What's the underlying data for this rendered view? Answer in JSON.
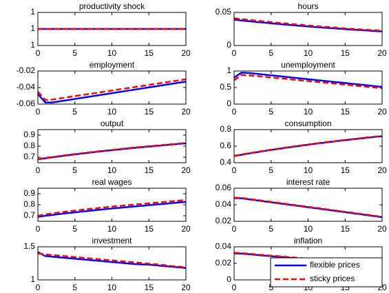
{
  "chart_data": [
    {
      "type": "line",
      "title": "productivity shock",
      "x": [
        0,
        1,
        2,
        3,
        4,
        5,
        6,
        7,
        8,
        9,
        10,
        11,
        12,
        13,
        14,
        15,
        16,
        17,
        18,
        19,
        20
      ],
      "xlim": [
        0,
        20
      ],
      "xticks": [
        0,
        5,
        10,
        15,
        20
      ],
      "ylim": [
        0.99,
        1.01
      ],
      "yticks": [
        {
          "value": 0.99,
          "label": "1"
        },
        1,
        {
          "value": 1.01,
          "label": "1"
        }
      ],
      "series": [
        {
          "color": "#0000ff",
          "values": [
            1,
            1,
            1,
            1,
            1,
            1,
            1,
            1,
            1,
            1,
            1,
            1,
            1,
            1,
            1,
            1,
            1,
            1,
            1,
            1,
            1
          ]
        },
        {
          "color": "#ff0000",
          "dash": true,
          "values": [
            1,
            1,
            1,
            1,
            1,
            1,
            1,
            1,
            1,
            1,
            1,
            1,
            1,
            1,
            1,
            1,
            1,
            1,
            1,
            1,
            1
          ]
        }
      ]
    },
    {
      "type": "line",
      "title": "hours",
      "x": [
        0,
        1,
        2,
        3,
        4,
        5,
        6,
        7,
        8,
        9,
        10,
        11,
        12,
        13,
        14,
        15,
        16,
        17,
        18,
        19,
        20
      ],
      "xlim": [
        0,
        20
      ],
      "xticks": [
        0,
        5,
        10,
        15,
        20
      ],
      "ylim": [
        0,
        0.05
      ],
      "yticks": [
        0,
        0.05
      ],
      "series": [
        {
          "color": "#0000ff",
          "values": [
            0.039,
            0.0378,
            0.0367,
            0.0356,
            0.0346,
            0.0335,
            0.0325,
            0.0315,
            0.0306,
            0.0297,
            0.0288,
            0.0279,
            0.0271,
            0.0263,
            0.0255,
            0.0247,
            0.024,
            0.0233,
            0.0226,
            0.0219,
            0.0212
          ]
        },
        {
          "color": "#ff0000",
          "dash": true,
          "values": [
            0.041,
            0.0398,
            0.0386,
            0.0375,
            0.0364,
            0.0353,
            0.0342,
            0.0332,
            0.0322,
            0.0312,
            0.0302,
            0.0293,
            0.0284,
            0.0276,
            0.0267,
            0.0259,
            0.0251,
            0.0244,
            0.0237,
            0.023,
            0.0222
          ]
        }
      ]
    },
    {
      "type": "line",
      "title": "employment",
      "x": [
        0,
        1,
        2,
        3,
        4,
        5,
        6,
        7,
        8,
        9,
        10,
        11,
        12,
        13,
        14,
        15,
        16,
        17,
        18,
        19,
        20
      ],
      "xlim": [
        0,
        20
      ],
      "xticks": [
        0,
        5,
        10,
        15,
        20
      ],
      "ylim": [
        -0.06,
        -0.02
      ],
      "yticks": [
        -0.06,
        -0.04,
        -0.02
      ],
      "series": [
        {
          "color": "#0000ff",
          "values": [
            -0.048,
            -0.058,
            -0.058,
            -0.0566,
            -0.0552,
            -0.0538,
            -0.0524,
            -0.051,
            -0.0496,
            -0.0482,
            -0.0468,
            -0.0454,
            -0.044,
            -0.0426,
            -0.0412,
            -0.0398,
            -0.0384,
            -0.037,
            -0.0356,
            -0.0342,
            -0.033
          ]
        },
        {
          "color": "#ff0000",
          "dash": true,
          "values": [
            -0.045,
            -0.055,
            -0.0545,
            -0.0531,
            -0.0518,
            -0.0504,
            -0.049,
            -0.0477,
            -0.0463,
            -0.045,
            -0.0436,
            -0.0422,
            -0.0409,
            -0.0395,
            -0.0382,
            -0.0368,
            -0.0354,
            -0.0341,
            -0.0327,
            -0.0314,
            -0.03
          ]
        }
      ]
    },
    {
      "type": "line",
      "title": "unemployment",
      "x": [
        0,
        1,
        2,
        3,
        4,
        5,
        6,
        7,
        8,
        9,
        10,
        11,
        12,
        13,
        14,
        15,
        16,
        17,
        18,
        19,
        20
      ],
      "xlim": [
        0,
        20
      ],
      "xticks": [
        0,
        5,
        10,
        15,
        20
      ],
      "ylim": [
        0,
        1
      ],
      "yticks": [
        0,
        0.5,
        1
      ],
      "series": [
        {
          "color": "#0000ff",
          "values": [
            0.8,
            0.95,
            0.94,
            0.917,
            0.893,
            0.87,
            0.847,
            0.823,
            0.8,
            0.777,
            0.753,
            0.73,
            0.707,
            0.683,
            0.66,
            0.637,
            0.613,
            0.59,
            0.567,
            0.543,
            0.52
          ]
        },
        {
          "color": "#ff0000",
          "dash": true,
          "values": [
            0.72,
            0.88,
            0.87,
            0.848,
            0.827,
            0.805,
            0.783,
            0.762,
            0.74,
            0.718,
            0.697,
            0.675,
            0.653,
            0.632,
            0.61,
            0.588,
            0.567,
            0.545,
            0.523,
            0.502,
            0.48
          ]
        }
      ]
    },
    {
      "type": "line",
      "title": "output",
      "x": [
        0,
        1,
        2,
        3,
        4,
        5,
        6,
        7,
        8,
        9,
        10,
        11,
        12,
        13,
        14,
        15,
        16,
        17,
        18,
        19,
        20
      ],
      "xlim": [
        0,
        20
      ],
      "xticks": [
        0,
        5,
        10,
        15,
        20
      ],
      "ylim": [
        0.65,
        0.95
      ],
      "yticks": [
        0.7,
        0.8,
        0.9
      ],
      "series": [
        {
          "color": "#0000ff",
          "values": [
            0.68,
            0.69,
            0.699,
            0.708,
            0.717,
            0.725,
            0.733,
            0.741,
            0.749,
            0.756,
            0.763,
            0.77,
            0.777,
            0.784,
            0.79,
            0.796,
            0.802,
            0.808,
            0.814,
            0.82,
            0.826
          ]
        },
        {
          "color": "#ff0000",
          "dash": true,
          "values": [
            0.683,
            0.693,
            0.702,
            0.711,
            0.72,
            0.728,
            0.736,
            0.744,
            0.752,
            0.759,
            0.766,
            0.773,
            0.78,
            0.787,
            0.793,
            0.799,
            0.805,
            0.811,
            0.817,
            0.823,
            0.829
          ]
        }
      ]
    },
    {
      "type": "line",
      "title": "consumption",
      "x": [
        0,
        1,
        2,
        3,
        4,
        5,
        6,
        7,
        8,
        9,
        10,
        11,
        12,
        13,
        14,
        15,
        16,
        17,
        18,
        19,
        20
      ],
      "xlim": [
        0,
        20
      ],
      "xticks": [
        0,
        5,
        10,
        15,
        20
      ],
      "ylim": [
        0.4,
        0.8
      ],
      "yticks": [
        0.4,
        0.6,
        0.8
      ],
      "series": [
        {
          "color": "#0000ff",
          "values": [
            0.48,
            0.496,
            0.511,
            0.526,
            0.54,
            0.554,
            0.567,
            0.58,
            0.593,
            0.605,
            0.617,
            0.629,
            0.64,
            0.651,
            0.662,
            0.672,
            0.682,
            0.692,
            0.702,
            0.711,
            0.72
          ]
        },
        {
          "color": "#ff0000",
          "dash": true,
          "values": [
            0.483,
            0.499,
            0.514,
            0.529,
            0.543,
            0.557,
            0.57,
            0.583,
            0.596,
            0.608,
            0.62,
            0.632,
            0.643,
            0.654,
            0.665,
            0.675,
            0.685,
            0.695,
            0.705,
            0.714,
            0.723
          ]
        }
      ]
    },
    {
      "type": "line",
      "title": "real wages",
      "x": [
        0,
        1,
        2,
        3,
        4,
        5,
        6,
        7,
        8,
        9,
        10,
        11,
        12,
        13,
        14,
        15,
        16,
        17,
        18,
        19,
        20
      ],
      "xlim": [
        0,
        20
      ],
      "xticks": [
        0,
        5,
        10,
        15,
        20
      ],
      "ylim": [
        0.65,
        0.95
      ],
      "yticks": [
        0.7,
        0.8,
        0.9
      ],
      "series": [
        {
          "color": "#0000ff",
          "values": [
            0.69,
            0.7,
            0.708,
            0.716,
            0.724,
            0.731,
            0.738,
            0.745,
            0.752,
            0.759,
            0.766,
            0.772,
            0.778,
            0.784,
            0.79,
            0.796,
            0.802,
            0.808,
            0.814,
            0.82,
            0.826
          ]
        },
        {
          "color": "#ff0000",
          "dash": true,
          "values": [
            0.7,
            0.713,
            0.722,
            0.731,
            0.739,
            0.747,
            0.755,
            0.762,
            0.769,
            0.776,
            0.783,
            0.789,
            0.795,
            0.801,
            0.807,
            0.813,
            0.819,
            0.825,
            0.831,
            0.837,
            0.843
          ]
        }
      ]
    },
    {
      "type": "line",
      "title": "interest rate",
      "x": [
        0,
        1,
        2,
        3,
        4,
        5,
        6,
        7,
        8,
        9,
        10,
        11,
        12,
        13,
        14,
        15,
        16,
        17,
        18,
        19,
        20
      ],
      "xlim": [
        0,
        20
      ],
      "xticks": [
        0,
        5,
        10,
        15,
        20
      ],
      "ylim": [
        0.02,
        0.06
      ],
      "yticks": [
        0.02,
        0.04,
        0.06
      ],
      "series": [
        {
          "color": "#0000ff",
          "values": [
            0.048,
            0.0478,
            0.0466,
            0.0454,
            0.0442,
            0.043,
            0.0418,
            0.0406,
            0.0394,
            0.0382,
            0.037,
            0.0358,
            0.0346,
            0.0334,
            0.0322,
            0.031,
            0.0298,
            0.0286,
            0.0274,
            0.0262,
            0.025
          ]
        },
        {
          "color": "#ff0000",
          "dash": true,
          "values": [
            0.0485,
            0.0483,
            0.0471,
            0.0459,
            0.0447,
            0.0435,
            0.0423,
            0.0411,
            0.0399,
            0.0387,
            0.0375,
            0.0363,
            0.0351,
            0.0339,
            0.0327,
            0.0315,
            0.0303,
            0.0291,
            0.0279,
            0.0267,
            0.0253
          ]
        }
      ]
    },
    {
      "type": "line",
      "title": "investment",
      "x": [
        0,
        1,
        2,
        3,
        4,
        5,
        6,
        7,
        8,
        9,
        10,
        11,
        12,
        13,
        14,
        15,
        16,
        17,
        18,
        19,
        20
      ],
      "xlim": [
        0,
        20
      ],
      "xticks": [
        0,
        5,
        10,
        15,
        20
      ],
      "ylim": [
        1,
        1.5
      ],
      "yticks": [
        1,
        1.5
      ],
      "series": [
        {
          "color": "#0000ff",
          "values": [
            1.42,
            1.36,
            1.35,
            1.34,
            1.33,
            1.32,
            1.31,
            1.3,
            1.29,
            1.28,
            1.27,
            1.26,
            1.25,
            1.24,
            1.235,
            1.23,
            1.22,
            1.21,
            1.2,
            1.19,
            1.18
          ]
        },
        {
          "color": "#ff0000",
          "dash": true,
          "values": [
            1.4,
            1.385,
            1.375,
            1.365,
            1.355,
            1.345,
            1.335,
            1.325,
            1.315,
            1.305,
            1.295,
            1.285,
            1.275,
            1.265,
            1.255,
            1.245,
            1.235,
            1.225,
            1.21,
            1.2,
            1.19
          ]
        }
      ]
    },
    {
      "type": "line",
      "title": "inflation",
      "x": [
        0,
        1,
        2,
        3,
        4,
        5,
        6,
        7,
        8,
        9,
        10,
        11,
        12,
        13,
        14,
        15,
        16,
        17,
        18,
        19,
        20
      ],
      "xlim": [
        0,
        20
      ],
      "xticks": [
        0,
        5,
        10,
        15,
        20
      ],
      "ylim": [
        0,
        0.04
      ],
      "yticks": [
        0,
        0.02,
        0.04
      ],
      "legend": "southeast",
      "series": [
        {
          "name": "flexible prices",
          "color": "#0000ff",
          "values": [
            0.032,
            0.0318,
            0.031,
            0.0302,
            0.0294,
            0.0287,
            0.028,
            0.0272,
            0.0265,
            0.0258,
            0.0251,
            0.0244,
            0.0237,
            0.023,
            0.0223,
            0.0216,
            0.0209,
            0.0202,
            0.0195,
            0.0188,
            0.0181
          ]
        },
        {
          "name": "sticky prices",
          "color": "#ff0000",
          "dash": true,
          "values": [
            0.0326,
            0.0324,
            0.0316,
            0.0308,
            0.03,
            0.0293,
            0.0286,
            0.0278,
            0.0271,
            0.0264,
            0.0257,
            0.025,
            0.0243,
            0.0236,
            0.0229,
            0.0222,
            0.0215,
            0.0208,
            0.0201,
            0.0194,
            0.0187
          ]
        }
      ]
    }
  ]
}
